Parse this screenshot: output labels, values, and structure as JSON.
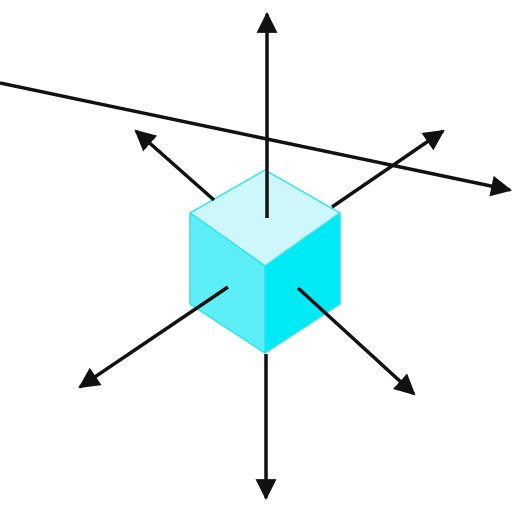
{
  "diagram": {
    "cube": {
      "top_face_color": "#cdf7fb",
      "left_face_color": "#5ceff8",
      "right_face_color": "#00eaf6",
      "edge_color": "#2fe3f0"
    },
    "arrow_color": "#111111",
    "arrows": [
      "arrow-up",
      "arrow-down",
      "arrow-upper-left",
      "arrow-upper-right",
      "arrow-lower-left",
      "arrow-lower-right",
      "arrow-long-diagonal"
    ]
  }
}
